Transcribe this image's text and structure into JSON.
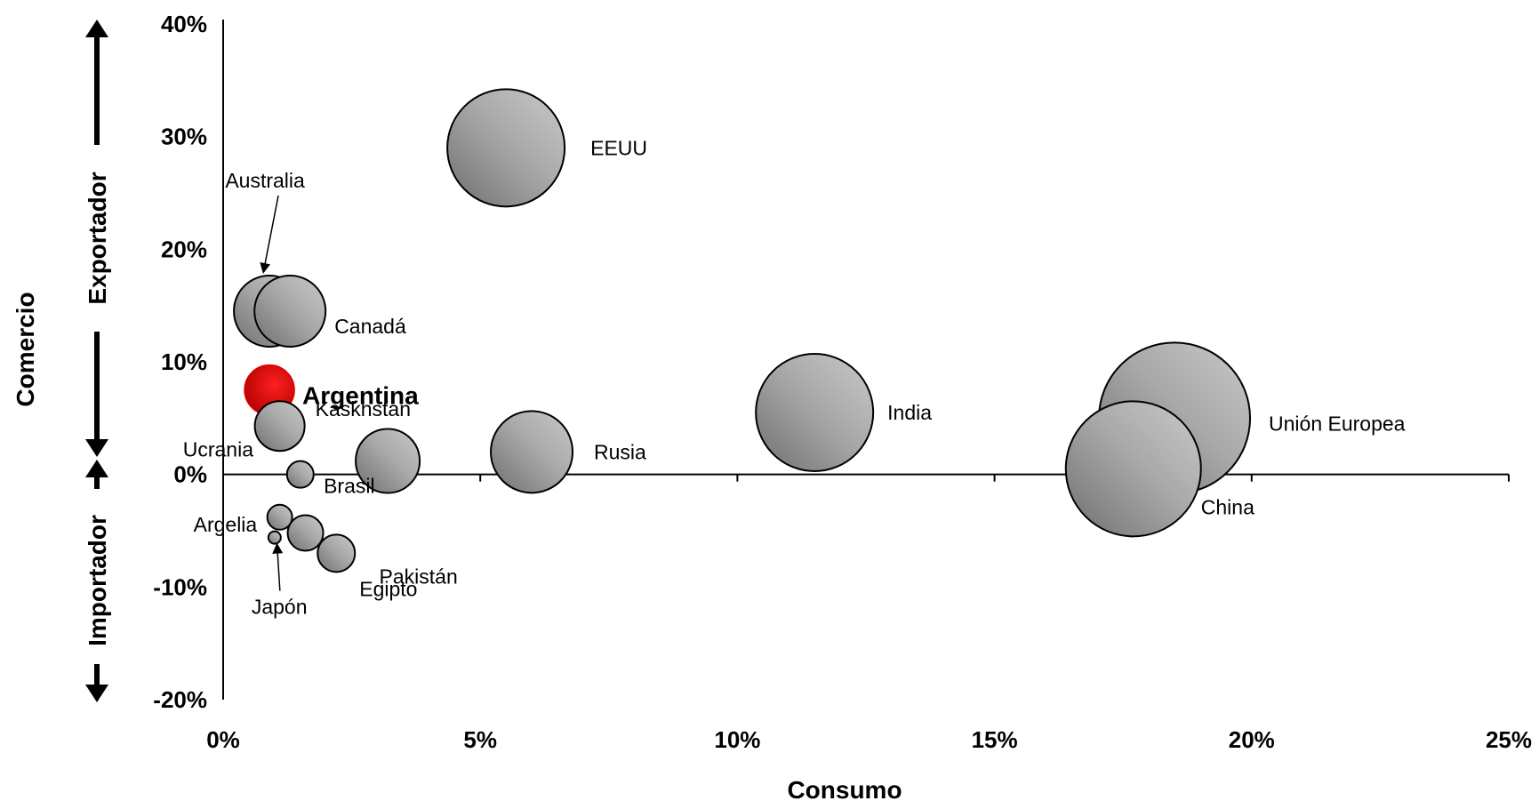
{
  "chart_data": {
    "type": "scatter",
    "xlabel": "Consumo",
    "ylabel": "Comercio",
    "y_side_labels": {
      "top": "Exportador",
      "bottom": "Importador"
    },
    "xlim": [
      0,
      25
    ],
    "ylim": [
      -20,
      40
    ],
    "x_ticks": [
      "0%",
      "5%",
      "10%",
      "15%",
      "20%",
      "25%"
    ],
    "y_ticks": [
      "40%",
      "30%",
      "20%",
      "10%",
      "0%",
      "-10%",
      "-20%"
    ],
    "colors": {
      "bubble": "#a6a6a6",
      "highlight": "#e00000",
      "axis": "#000000"
    },
    "series": [
      {
        "name": "EEUU",
        "x": 5.5,
        "y": 29.0,
        "size": 132
      },
      {
        "name": "Australia",
        "x": 0.9,
        "y": 14.5,
        "size": 80
      },
      {
        "name": "Canadá",
        "x": 1.3,
        "y": 14.5,
        "size": 80
      },
      {
        "name": "Argentina",
        "x": 0.9,
        "y": 7.5,
        "size": 56,
        "highlight": true
      },
      {
        "name": "Kaskhstan",
        "x": 1.1,
        "y": 4.3,
        "size": 56
      },
      {
        "name": "Ucrania",
        "x": 1.5,
        "y": 0.0,
        "size": 30
      },
      {
        "name": "Brasil",
        "x": 3.2,
        "y": 1.2,
        "size": 72
      },
      {
        "name": "Pakistán",
        "x": 1.6,
        "y": -5.2,
        "size": 40
      },
      {
        "name": "Argelia",
        "x": 1.1,
        "y": -3.8,
        "size": 28
      },
      {
        "name": "Japón",
        "x": 1.0,
        "y": -5.6,
        "size": 14
      },
      {
        "name": "Egipto",
        "x": 2.2,
        "y": -7.0,
        "size": 42
      },
      {
        "name": "Rusia",
        "x": 6.0,
        "y": 2.0,
        "size": 92
      },
      {
        "name": "India",
        "x": 11.5,
        "y": 5.5,
        "size": 132
      },
      {
        "name": "Unión Europea",
        "x": 18.5,
        "y": 5.0,
        "size": 170
      },
      {
        "name": "China",
        "x": 17.7,
        "y": 0.5,
        "size": 152
      }
    ]
  }
}
